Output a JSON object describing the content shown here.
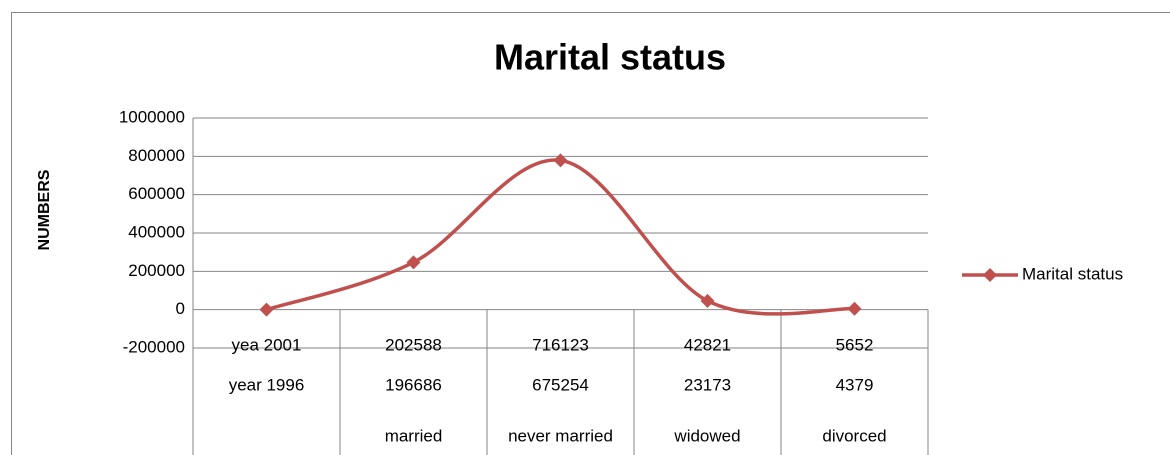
{
  "chart_data": {
    "type": "line",
    "title": "Marital status",
    "y_label": "NUMBERS",
    "categories": [
      [
        "yea 2001",
        "year 1996",
        null
      ],
      [
        "202588",
        "196686",
        "married"
      ],
      [
        "716123",
        "675254",
        "never married"
      ],
      [
        "42821",
        "23173",
        "widowed"
      ],
      [
        "5652",
        "4379",
        "divorced"
      ]
    ],
    "series": [
      {
        "name": "Marital status",
        "color": "#c0504d",
        "values": [
          0,
          247000,
          779000,
          46000,
          5000
        ]
      }
    ],
    "ylim": [
      -200000,
      1000000
    ],
    "yticks": [
      -200000,
      0,
      200000,
      400000,
      600000,
      800000,
      1000000
    ],
    "grid": true,
    "smooth": true,
    "legend": "right"
  }
}
